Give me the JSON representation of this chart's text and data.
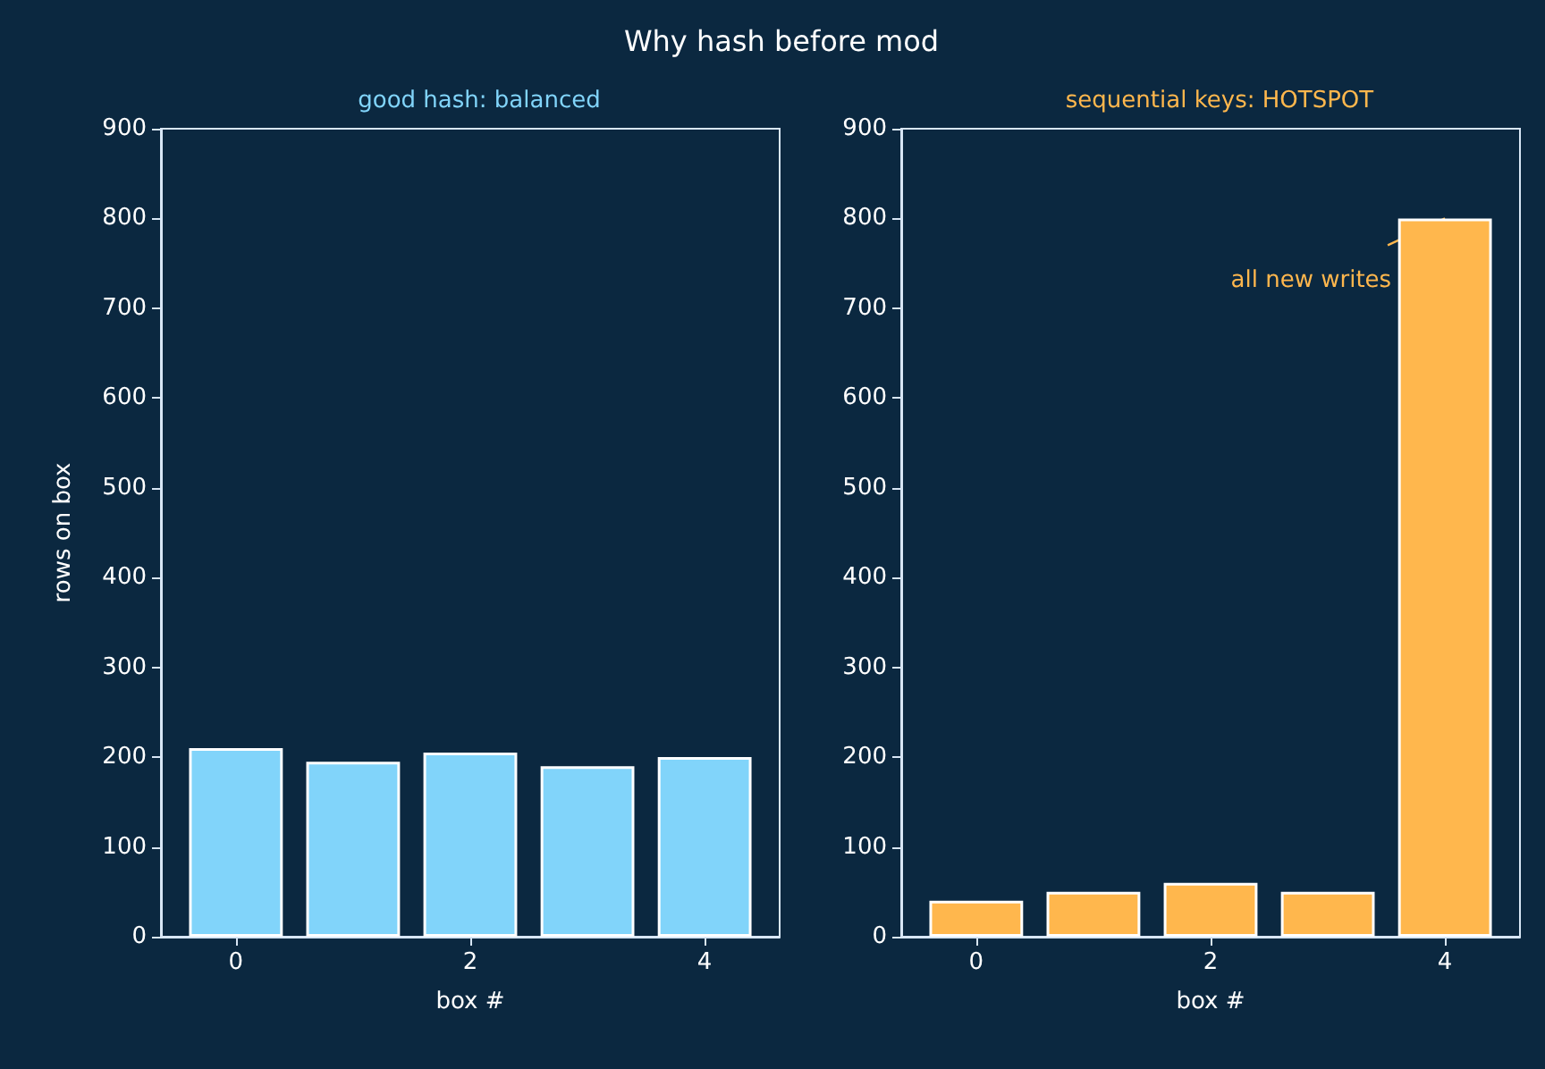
{
  "chart_data": [
    {
      "type": "bar",
      "title": "Why hash before mod",
      "subtitle": "good hash: balanced",
      "xlabel": "box #",
      "ylabel": "rows on box",
      "x": [
        0,
        1,
        2,
        3,
        4
      ],
      "values": [
        210,
        195,
        205,
        190,
        200
      ],
      "color": "#81d4fa",
      "xlim": [
        -0.64,
        4.64
      ],
      "xticks": [
        0,
        2,
        4
      ],
      "ylim": [
        0,
        900
      ],
      "yticks": [
        0,
        100,
        200,
        300,
        400,
        500,
        600,
        700,
        800,
        900
      ],
      "grid": false
    },
    {
      "type": "bar",
      "subtitle": "sequential keys: HOTSPOT",
      "xlabel": "box #",
      "x": [
        0,
        1,
        2,
        3,
        4
      ],
      "values": [
        40,
        50,
        60,
        50,
        800
      ],
      "color": "#ffb74d",
      "xlim": [
        -0.64,
        4.64
      ],
      "xticks": [
        0,
        2,
        4
      ],
      "ylim": [
        0,
        900
      ],
      "yticks": [
        0,
        100,
        200,
        300,
        400,
        500,
        600,
        700,
        800,
        900
      ],
      "grid": false,
      "annotations": [
        {
          "text": "all new writes",
          "x": 4,
          "y": 800
        }
      ]
    }
  ]
}
